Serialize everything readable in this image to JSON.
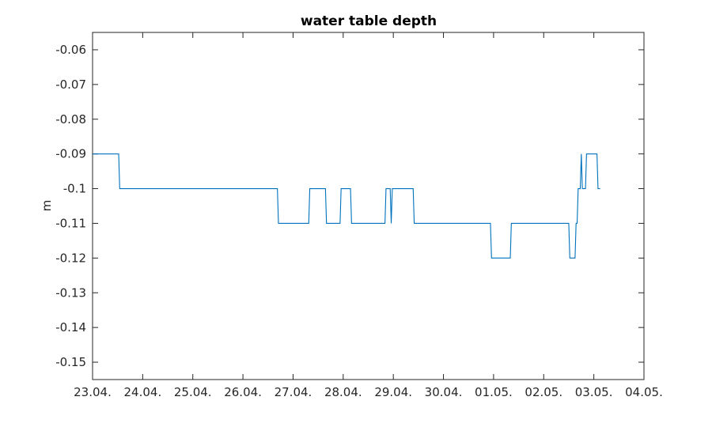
{
  "chart_data": {
    "type": "line",
    "title": "water table depth",
    "xlabel": "",
    "ylabel": "m",
    "x_ticks": [
      "23.04.",
      "24.04.",
      "25.04.",
      "26.04.",
      "27.04.",
      "28.04.",
      "29.04.",
      "30.04.",
      "01.05.",
      "02.05.",
      "03.05.",
      "04.05."
    ],
    "y_ticks": [
      "-0.06",
      "-0.07",
      "-0.08",
      "-0.09",
      "-0.1",
      "-0.11",
      "-0.12",
      "-0.13",
      "-0.14",
      "-0.15"
    ],
    "ylim": [
      -0.155,
      -0.055
    ],
    "xlim": [
      "2023-04-23T00:00",
      "2023-05-04T00:00"
    ],
    "grid": false,
    "series": [
      {
        "color": "#0072bd",
        "points": [
          [
            "2023-04-23T00:00",
            -0.09
          ],
          [
            "2023-04-23T12:30",
            -0.09
          ],
          [
            "2023-04-23T13:00",
            -0.1
          ],
          [
            "2023-04-26T16:30",
            -0.1
          ],
          [
            "2023-04-26T17:00",
            -0.11
          ],
          [
            "2023-04-27T07:30",
            -0.11
          ],
          [
            "2023-04-27T08:00",
            -0.1
          ],
          [
            "2023-04-27T15:30",
            -0.1
          ],
          [
            "2023-04-27T16:00",
            -0.11
          ],
          [
            "2023-04-27T22:30",
            -0.11
          ],
          [
            "2023-04-27T23:00",
            -0.1
          ],
          [
            "2023-04-28T03:30",
            -0.1
          ],
          [
            "2023-04-28T04:00",
            -0.11
          ],
          [
            "2023-04-28T20:00",
            -0.11
          ],
          [
            "2023-04-28T20:30",
            -0.1
          ],
          [
            "2023-04-28T22:30",
            -0.1
          ],
          [
            "2023-04-28T23:00",
            -0.11
          ],
          [
            "2023-04-28T23:30",
            -0.1
          ],
          [
            "2023-04-29T09:30",
            -0.1
          ],
          [
            "2023-04-29T10:00",
            -0.11
          ],
          [
            "2023-04-30T22:30",
            -0.11
          ],
          [
            "2023-04-30T23:00",
            -0.12
          ],
          [
            "2023-05-01T08:00",
            -0.12
          ],
          [
            "2023-05-01T08:30",
            -0.11
          ],
          [
            "2023-05-02T12:00",
            -0.11
          ],
          [
            "2023-05-02T12:30",
            -0.12
          ],
          [
            "2023-05-02T15:00",
            -0.12
          ],
          [
            "2023-05-02T15:30",
            -0.11
          ],
          [
            "2023-05-02T16:00",
            -0.11
          ],
          [
            "2023-05-02T16:30",
            -0.1
          ],
          [
            "2023-05-02T17:30",
            -0.1
          ],
          [
            "2023-05-02T18:00",
            -0.09
          ],
          [
            "2023-05-02T18:30",
            -0.1
          ],
          [
            "2023-05-02T20:00",
            -0.1
          ],
          [
            "2023-05-02T20:30",
            -0.09
          ],
          [
            "2023-05-03T01:30",
            -0.09
          ],
          [
            "2023-05-03T02:00",
            -0.1
          ],
          [
            "2023-05-03T03:00",
            -0.1
          ]
        ]
      }
    ]
  }
}
